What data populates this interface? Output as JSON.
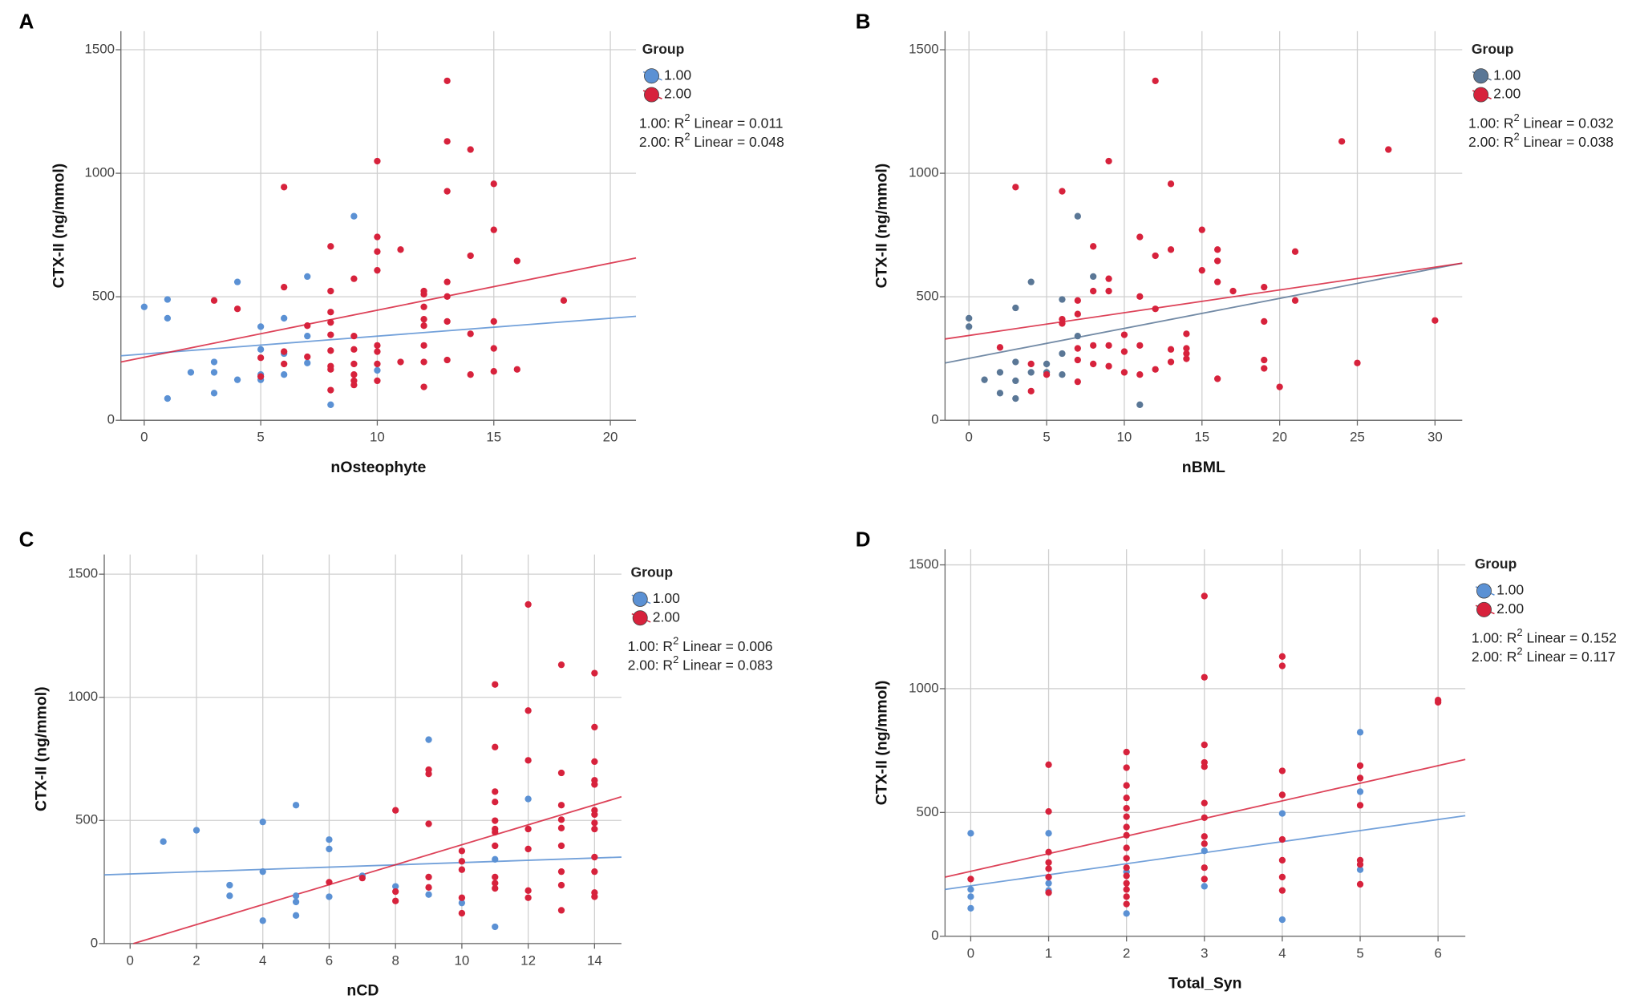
{
  "chart_data": [
    {
      "type": "scatter",
      "panel": "A",
      "xlabel": "nOsteophyte",
      "ylabel": "CTX-II (ng/mmol)",
      "xlim": [
        -1,
        21.1
      ],
      "ylim": [
        0,
        1575
      ],
      "xticks": [
        0,
        5,
        10,
        15,
        20
      ],
      "yticks": [
        0,
        500,
        1000,
        1500
      ],
      "grid": true,
      "legend_title": "Group",
      "series": [
        {
          "name": "1.00",
          "color": "#5b91d4",
          "x": [
            0,
            1,
            1,
            1,
            2,
            3,
            3,
            3,
            4,
            4,
            5,
            5,
            5,
            5,
            6,
            6,
            6,
            7,
            7,
            7,
            8,
            9,
            10
          ],
          "values": [
            459,
            489,
            413,
            88,
            194,
            236,
            194,
            110,
            560,
            164,
            379,
            287,
            185,
            164,
            413,
            270,
            185,
            582,
            341,
            232,
            63,
            826,
            202
          ],
          "trendline": {
            "x": [
              -1,
              21.1
            ],
            "values": [
              261,
              421
            ]
          }
        },
        {
          "name": "2.00",
          "color": "#d7223c",
          "x": [
            3,
            4,
            5,
            5,
            6,
            6,
            6,
            6,
            7,
            7,
            8,
            8,
            8,
            8,
            8,
            8,
            8,
            8,
            8,
            9,
            9,
            9,
            9,
            9,
            9,
            9,
            10,
            10,
            10,
            10,
            10,
            10,
            10,
            10,
            11,
            11,
            12,
            12,
            12,
            12,
            12,
            12,
            12,
            12,
            13,
            13,
            13,
            13,
            13,
            13,
            13,
            14,
            14,
            14,
            14,
            15,
            15,
            15,
            15,
            15,
            16,
            16,
            18
          ],
          "values": [
            485,
            451,
            253,
            177,
            944,
            539,
            278,
            228,
            383,
            257,
            704,
            523,
            438,
            396,
            346,
            282,
            219,
            122,
            206,
            573,
            341,
            287,
            228,
            185,
            160,
            143,
            1049,
            742,
            683,
            607,
            303,
            278,
            228,
            160,
            691,
            236,
            523,
            510,
            459,
            409,
            383,
            303,
            236,
            135,
            1374,
            1129,
            927,
            560,
            501,
            400,
            244,
            1096,
            666,
            350,
            185,
            957,
            771,
            400,
            291,
            198,
            645,
            206,
            485
          ],
          "trendline": {
            "x": [
              -1,
              21.1
            ],
            "values": [
              236,
              657
            ]
          }
        }
      ],
      "annotations": [
        {
          "text": "1.00: R",
          "sup": "2",
          "rest": " Linear = 0.011"
        },
        {
          "text": "2.00: R",
          "sup": "2",
          "rest": " Linear = 0.048"
        }
      ]
    },
    {
      "type": "scatter",
      "panel": "B",
      "xlabel": "nBML",
      "ylabel": "CTX-II (ng/mmol)",
      "xlim": [
        -1.54,
        31.75
      ],
      "ylim": [
        0,
        1575
      ],
      "xticks": [
        0,
        5,
        10,
        15,
        20,
        25,
        30
      ],
      "yticks": [
        0,
        500,
        1000,
        1500
      ],
      "grid": true,
      "legend_title": "Group",
      "series": [
        {
          "name": "1.00",
          "color": "#5a7796",
          "x": [
            0,
            0,
            1,
            2,
            2,
            3,
            3,
            3,
            3,
            4,
            4,
            5,
            5,
            6,
            6,
            6,
            7,
            7,
            8,
            11
          ],
          "values": [
            413,
            379,
            164,
            194,
            110,
            455,
            236,
            160,
            88,
            560,
            194,
            228,
            194,
            489,
            270,
            185,
            826,
            341,
            582,
            63
          ],
          "trendline": {
            "x": [
              -1.54,
              31.75
            ],
            "values": [
              232,
              636
            ]
          }
        },
        {
          "name": "2.00",
          "color": "#d7223c",
          "x": [
            2,
            3,
            4,
            4,
            5,
            6,
            6,
            6,
            7,
            7,
            7,
            7,
            7,
            8,
            8,
            8,
            8,
            9,
            9,
            9,
            9,
            9,
            10,
            10,
            10,
            11,
            11,
            11,
            11,
            12,
            12,
            12,
            12,
            13,
            13,
            13,
            13,
            14,
            14,
            14,
            14,
            15,
            15,
            16,
            16,
            16,
            16,
            17,
            19,
            19,
            19,
            19,
            20,
            21,
            21,
            24,
            25,
            27,
            30
          ],
          "values": [
            295,
            944,
            228,
            118,
            185,
            927,
            409,
            392,
            485,
            430,
            291,
            244,
            156,
            704,
            523,
            303,
            228,
            1049,
            573,
            523,
            303,
            219,
            346,
            278,
            194,
            742,
            501,
            303,
            185,
            1374,
            666,
            451,
            206,
            957,
            691,
            287,
            236,
            350,
            291,
            270,
            249,
            771,
            607,
            691,
            645,
            560,
            168,
            523,
            539,
            400,
            244,
            210,
            135,
            683,
            485,
            1129,
            232,
            1096,
            404
          ],
          "trendline": {
            "x": [
              -1.54,
              31.75
            ],
            "values": [
              329,
              636
            ]
          }
        }
      ],
      "annotations": [
        {
          "text": "1.00: R",
          "sup": "2",
          "rest": " Linear = 0.032"
        },
        {
          "text": "2.00: R",
          "sup": "2",
          "rest": " Linear = 0.038"
        }
      ]
    },
    {
      "type": "scatter",
      "panel": "C",
      "xlabel": "nCD",
      "ylabel": "CTX-II (ng/mmol)",
      "xlim": [
        -0.78,
        14.81
      ],
      "ylim": [
        0,
        1580
      ],
      "xticks": [
        0,
        2,
        4,
        6,
        8,
        10,
        12,
        14
      ],
      "yticks": [
        0,
        500,
        1000,
        1500
      ],
      "grid": true,
      "legend_title": "Group",
      "series": [
        {
          "name": "1.00",
          "color": "#5b91d4",
          "x": [
            1,
            2,
            3,
            3,
            4,
            4,
            4,
            5,
            5,
            5,
            5,
            6,
            6,
            6,
            7,
            8,
            9,
            9,
            10,
            11,
            11,
            12
          ],
          "values": [
            414,
            460,
            237,
            194,
            494,
            292,
            93,
            562,
            194,
            169,
            114,
            422,
            384,
            190,
            275,
            232,
            828,
            199,
            165,
            342,
            68,
            587
          ],
          "trendline": {
            "x": [
              -0.78,
              14.81
            ],
            "values": [
              279,
              351
            ]
          }
        },
        {
          "name": "2.00",
          "color": "#d7223c",
          "x": [
            6,
            7,
            8,
            8,
            8,
            9,
            9,
            9,
            9,
            9,
            10,
            10,
            10,
            10,
            10,
            11,
            11,
            11,
            11,
            11,
            11,
            11,
            11,
            11,
            11,
            11,
            12,
            12,
            12,
            12,
            12,
            12,
            12,
            13,
            13,
            13,
            13,
            13,
            13,
            13,
            13,
            13,
            14,
            14,
            14,
            14,
            14,
            14,
            14,
            14,
            14,
            14,
            14,
            14,
            14
          ],
          "values": [
            249,
            266,
            541,
            211,
            173,
            706,
            689,
            486,
            270,
            228,
            376,
            334,
            300,
            186,
            123,
            1052,
            798,
            617,
            575,
            499,
            465,
            452,
            397,
            270,
            245,
            224,
            1377,
            946,
            744,
            465,
            384,
            215,
            186,
            1132,
            693,
            562,
            503,
            469,
            397,
            292,
            237,
            135,
            1098,
            879,
            739,
            663,
            646,
            541,
            524,
            490,
            465,
            351,
            292,
            207,
            190
          ],
          "trendline": {
            "x": [
              0.1,
              14.81
            ],
            "values": [
              0,
              596
            ]
          }
        }
      ],
      "annotations": [
        {
          "text": "1.00: R",
          "sup": "2",
          "rest": " Linear = 0.006"
        },
        {
          "text": "2.00: R",
          "sup": "2",
          "rest": " Linear = 0.083"
        }
      ]
    },
    {
      "type": "scatter",
      "panel": "D",
      "xlabel": "Total_Syn",
      "ylabel": "CTX-II (ng/mmol)",
      "xlim": [
        -0.33,
        6.35
      ],
      "ylim": [
        0,
        1563
      ],
      "xticks": [
        0,
        1,
        2,
        3,
        4,
        5,
        6
      ],
      "yticks": [
        0,
        500,
        1000,
        1500
      ],
      "grid": true,
      "legend_title": "Group",
      "series": [
        {
          "name": "1.00",
          "color": "#5b91d4",
          "x": [
            0,
            0,
            0,
            0,
            1,
            1,
            1,
            2,
            2,
            3,
            3,
            4,
            4,
            5,
            5,
            5
          ],
          "values": [
            416,
            160,
            113,
            189,
            416,
            214,
            185,
            92,
            260,
            202,
            345,
            496,
            67,
            824,
            584,
            269
          ],
          "trendline": {
            "x": [
              -0.33,
              6.35
            ],
            "values": [
              189,
              487
            ]
          }
        },
        {
          "name": "2.00",
          "color": "#d7223c",
          "x": [
            0,
            1,
            1,
            1,
            1,
            1,
            1,
            1,
            2,
            2,
            2,
            2,
            2,
            2,
            2,
            2,
            2,
            2,
            2,
            2,
            2,
            2,
            2,
            2,
            3,
            3,
            3,
            3,
            3,
            3,
            3,
            3,
            3,
            3,
            3,
            4,
            4,
            4,
            4,
            4,
            4,
            4,
            4,
            5,
            5,
            5,
            5,
            5,
            5,
            6,
            6
          ],
          "values": [
            231,
            693,
            504,
            340,
            298,
            273,
            239,
            176,
            744,
            681,
            609,
            559,
            517,
            483,
            441,
            408,
            357,
            315,
            277,
            244,
            214,
            189,
            160,
            130,
            1374,
            1046,
            773,
            702,
            685,
            538,
            479,
            403,
            374,
            277,
            231,
            1130,
            1092,
            668,
            571,
            391,
            307,
            239,
            185,
            689,
            639,
            529,
            307,
            290,
            210,
            954,
            945
          ],
          "trendline": {
            "x": [
              -0.33,
              6.35
            ],
            "values": [
              239,
              714
            ]
          }
        }
      ],
      "annotations": [
        {
          "text": "1.00: R",
          "sup": "2",
          "rest": " Linear = 0.152"
        },
        {
          "text": "2.00: R",
          "sup": "2",
          "rest": " Linear = 0.117"
        }
      ]
    }
  ]
}
